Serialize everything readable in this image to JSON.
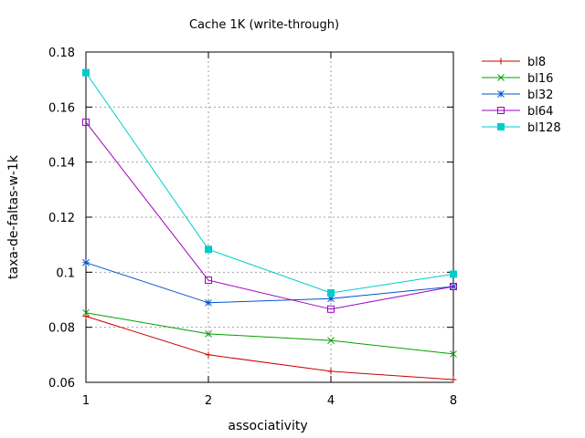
{
  "chart_data": {
    "type": "line",
    "title": "Cache 1K (write-through)",
    "xlabel": "associativity",
    "ylabel": "taxa-de-faltas-w-1k",
    "x_scale": "log2",
    "x": [
      1,
      2,
      4,
      8
    ],
    "x_tick_labels": [
      "1",
      "2",
      "4",
      "8"
    ],
    "ylim": [
      0.06,
      0.18
    ],
    "y_ticks": [
      0.06,
      0.08,
      0.1,
      0.12,
      0.14,
      0.16,
      0.18
    ],
    "y_tick_labels": [
      "0.06",
      "0.08",
      "0.1",
      "0.12",
      "0.14",
      "0.16",
      "0.18"
    ],
    "grid": true,
    "legend_position": "outside-right",
    "series": [
      {
        "name": "bl8",
        "color": "#cc0000",
        "marker": "plus",
        "values": [
          0.084,
          0.07,
          0.064,
          0.061
        ]
      },
      {
        "name": "bl16",
        "color": "#00a000",
        "marker": "cross",
        "values": [
          0.0853,
          0.0776,
          0.0752,
          0.0703
        ]
      },
      {
        "name": "bl32",
        "color": "#0055cc",
        "marker": "star",
        "values": [
          0.1035,
          0.0889,
          0.0904,
          0.0948
        ]
      },
      {
        "name": "bl64",
        "color": "#a000c0",
        "marker": "square-open",
        "values": [
          0.1545,
          0.0971,
          0.0866,
          0.0948
        ]
      },
      {
        "name": "bl128",
        "color": "#00cccc",
        "marker": "square-filled",
        "values": [
          0.1725,
          0.1083,
          0.0925,
          0.0993
        ]
      }
    ]
  }
}
